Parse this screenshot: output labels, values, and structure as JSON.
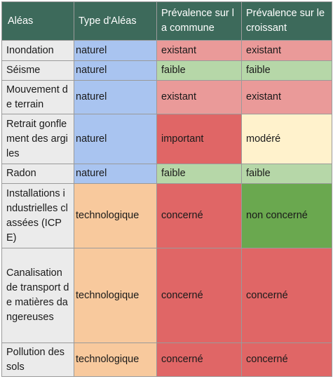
{
  "headers": [
    "Aléas",
    "Type d'Aléas",
    "Prévalence sur la commune",
    "Prévalence sur le croissant"
  ],
  "rows": [
    {
      "alea": "Inondation",
      "type": "naturel",
      "commune": "existant",
      "croissant": "existant"
    },
    {
      "alea": "Séisme",
      "type": "naturel",
      "commune": "faible",
      "croissant": "faible"
    },
    {
      "alea": "Mouvement de terrain",
      "type": "naturel",
      "commune": "existant",
      "croissant": "existant"
    },
    {
      "alea": "Retrait gonflement des argiles",
      "type": "naturel",
      "commune": "important",
      "croissant": "modéré"
    },
    {
      "alea": "Radon",
      "type": "naturel",
      "commune": "faible",
      "croissant": "faible"
    },
    {
      "alea": "Installations industrielles classées (ICPE)",
      "type": "technologique",
      "commune": "concerné",
      "croissant": "non concerné"
    },
    {
      "alea": "Canalisation de transport de matières dangereuses",
      "type": "technologique",
      "commune": "concerné",
      "croissant": "concerné"
    },
    {
      "alea": "Pollution des sols",
      "type": "technologique",
      "commune": "concerné",
      "croissant": "concerné"
    }
  ],
  "colors": {
    "header_bg": "#3d6a5b",
    "naturel": "#a9c4f0",
    "technologique": "#f8c99d",
    "existant": "#ea9a99",
    "faible": "#b6d7a8",
    "important": "#e06666",
    "modere": "#fff2cc",
    "concerne": "#e06666",
    "non_concerne": "#6aa84f"
  }
}
